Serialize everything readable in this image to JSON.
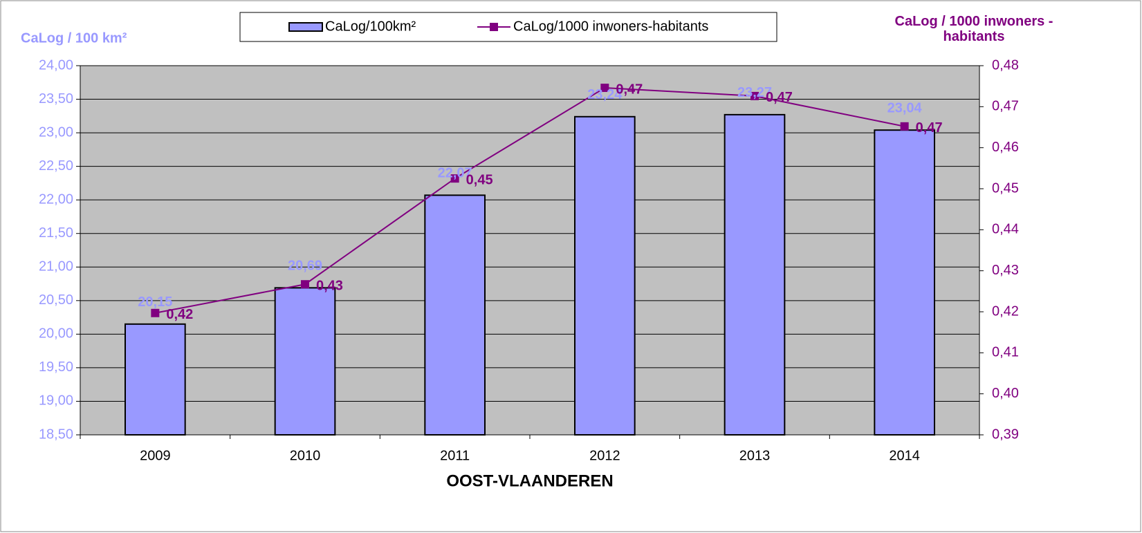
{
  "chart_data": {
    "type": "bar",
    "xlabel": "OOST-VLAANDEREN",
    "ylabel": "CaLog / 100 km²",
    "y2label": "CaLog / 1000 inwoners - habitants",
    "categories": [
      "2009",
      "2010",
      "2011",
      "2012",
      "2013",
      "2014"
    ],
    "series": [
      {
        "name": "CaLog/100km²",
        "type": "bar",
        "color": "#9999ff",
        "values": [
          20.15,
          20.69,
          22.07,
          23.24,
          23.27,
          23.04
        ],
        "value_labels": [
          "20,15",
          "20,69",
          "22,07",
          "23,24",
          "23,27",
          "23,04"
        ]
      },
      {
        "name": "CaLog/1000 inwoners-habitants",
        "type": "line",
        "axis": "y2",
        "color": "#800080",
        "values": [
          0.4197,
          0.4267,
          0.4525,
          0.4746,
          0.4726,
          0.4652
        ],
        "value_labels": [
          "0,42",
          "0,43",
          "0,45",
          "0,47",
          "0,47",
          "0,47"
        ]
      }
    ],
    "ylim": [
      18.5,
      24
    ],
    "yticks": [
      {
        "value": 18.5,
        "label": "18,50"
      },
      {
        "value": 19,
        "label": "19,00"
      },
      {
        "value": 19.5,
        "label": "19,50"
      },
      {
        "value": 20,
        "label": "20,00"
      },
      {
        "value": 20.5,
        "label": "20,50"
      },
      {
        "value": 21,
        "label": "21,00"
      },
      {
        "value": 21.5,
        "label": "21,50"
      },
      {
        "value": 22,
        "label": "22,00"
      },
      {
        "value": 22.5,
        "label": "22,50"
      },
      {
        "value": 23,
        "label": "23,00"
      },
      {
        "value": 23.5,
        "label": "23,50"
      },
      {
        "value": 24,
        "label": "24,00"
      }
    ],
    "y2lim": [
      0.39,
      0.48
    ],
    "y2ticks": [
      {
        "value": 0.39,
        "label": "0,39"
      },
      {
        "value": 0.4,
        "label": "0,40"
      },
      {
        "value": 0.41,
        "label": "0,41"
      },
      {
        "value": 0.42,
        "label": "0,42"
      },
      {
        "value": 0.43,
        "label": "0,43"
      },
      {
        "value": 0.44,
        "label": "0,44"
      },
      {
        "value": 0.45,
        "label": "0,45"
      },
      {
        "value": 0.46,
        "label": "0,46"
      },
      {
        "value": 0.47,
        "label": "0,47"
      },
      {
        "value": 0.48,
        "label": "0,48"
      }
    ],
    "grid": true,
    "legend": "top"
  }
}
